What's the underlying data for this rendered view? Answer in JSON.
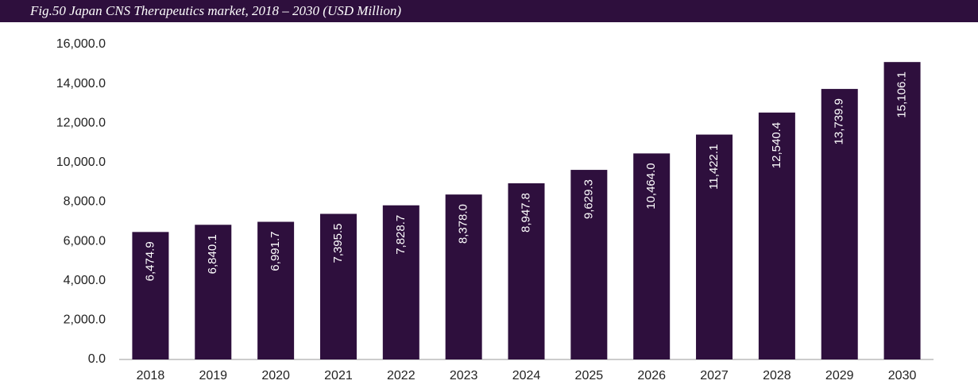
{
  "chart_data": {
    "type": "bar",
    "title": "Fig.50  Japan CNS Therapeutics market, 2018 – 2030 (USD Million)",
    "categories": [
      "2018",
      "2019",
      "2020",
      "2021",
      "2022",
      "2023",
      "2024",
      "2025",
      "2026",
      "2027",
      "2028",
      "2029",
      "2030"
    ],
    "values": [
      6474.9,
      6840.1,
      6991.7,
      7395.5,
      7828.7,
      8378.0,
      8947.8,
      9629.3,
      10464.0,
      11422.1,
      12540.4,
      13739.9,
      15106.1
    ],
    "value_labels": [
      "6,474.9",
      "6,840.1",
      "6,991.7",
      "7,395.5",
      "7,828.7",
      "8,378.0",
      "8,947.8",
      "9,629.3",
      "10,464.0",
      "11,422.1",
      "12,540.4",
      "13,739.9",
      "15,106.1"
    ],
    "color": "#2e0f3d",
    "ylim": [
      0,
      16000
    ],
    "yticks": [
      {
        "value": 0,
        "label": "0.0"
      },
      {
        "value": 2000,
        "label": "2,000.0"
      },
      {
        "value": 4000,
        "label": "4,000.0"
      },
      {
        "value": 6000,
        "label": "6,000.0"
      },
      {
        "value": 8000,
        "label": "8,000.0"
      },
      {
        "value": 10000,
        "label": "10,000.0"
      },
      {
        "value": 12000,
        "label": "12,000.0"
      },
      {
        "value": 14000,
        "label": "14,000.0"
      },
      {
        "value": 16000,
        "label": "16,000.0"
      }
    ],
    "grid": false
  }
}
